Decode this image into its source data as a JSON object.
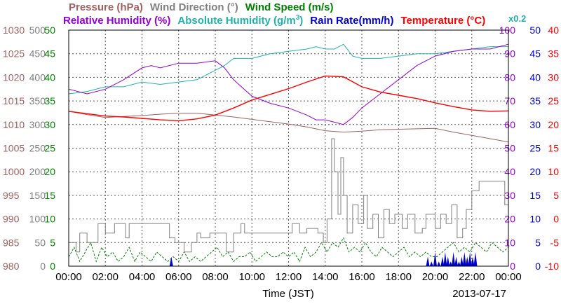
{
  "chart_data": {
    "type": "line",
    "date": "2013-07-17",
    "xlabel": "Time (JST)",
    "x_ticks": [
      "00:00",
      "02:00",
      "04:00",
      "06:00",
      "08:00",
      "10:00",
      "12:00",
      "14:00",
      "16:00",
      "18:00",
      "20:00",
      "22:00",
      "00:00"
    ],
    "x_range_hours": [
      0,
      24
    ],
    "grid": true,
    "axes": [
      {
        "label": "Pressure (hPa)",
        "color": "#a06060",
        "range": [
          980,
          1030
        ],
        "ticks": [
          "980",
          "985",
          "990",
          "995",
          "1000",
          "1005",
          "1010",
          "1015",
          "1020",
          "1025",
          "1030"
        ]
      },
      {
        "label": "Wind Direction (°)",
        "color": "#808080",
        "range": [
          0,
          500
        ],
        "ticks": [
          "0",
          "50",
          "100",
          "150",
          "200",
          "250",
          "300",
          "350",
          "400",
          "450",
          "500"
        ]
      },
      {
        "label": "Wind Speed (m/s)",
        "color": "#008000",
        "range": [
          0,
          50
        ],
        "ticks": [
          "0",
          "5",
          "10",
          "15",
          "20",
          "25",
          "30",
          "35",
          "40",
          "45",
          "50"
        ]
      },
      {
        "label": "Relative Humidity (%)",
        "color": "#9400d3",
        "range": [
          0,
          100
        ],
        "ticks": [
          "0",
          "10",
          "20",
          "30",
          "40",
          "50",
          "60",
          "70",
          "80",
          "90",
          "100"
        ]
      },
      {
        "label": "Rain Rate(mm/h)",
        "color": "#0000cd",
        "range": [
          0,
          50
        ],
        "ticks": [
          "0",
          "5",
          "10",
          "15",
          "20",
          "25",
          "30",
          "35",
          "40",
          "45",
          "50"
        ]
      },
      {
        "label": "Temperature (°C)",
        "color": "#ff0000",
        "range": [
          -10,
          40
        ],
        "ticks": [
          "-10",
          "-5",
          "0",
          "5",
          "10",
          "15",
          "20",
          "25",
          "30",
          "35",
          "40"
        ]
      }
    ],
    "legend": {
      "row1": [
        {
          "label": "Pressure (hPa)",
          "color": "#a06060"
        },
        {
          "label": "Wind Direction (°)",
          "color": "#808080"
        },
        {
          "label": "Wind Speed (m/s)",
          "color": "#008000"
        }
      ],
      "row2": [
        {
          "label": "Relative Humidity (%)",
          "color": "#9400d3"
        },
        {
          "label": "Absolute Humidity (g/m",
          "sup": "3",
          "tail": ")",
          "color": "#20b2aa"
        },
        {
          "label": "Rain Rate(mm/h)",
          "color": "#0000cd"
        },
        {
          "label": "Temperature (°C)",
          "color": "#ff0000"
        }
      ],
      "scale_note": {
        "label": "x0.2",
        "color": "#20b2aa"
      }
    },
    "series": [
      {
        "name": "Pressure (hPa)",
        "axis": 0,
        "color": "#a06060",
        "x": [
          0,
          1,
          2,
          3,
          4,
          5,
          6,
          7,
          8,
          9,
          10,
          11,
          12,
          13,
          14,
          15,
          16,
          17,
          18,
          19,
          20,
          21,
          22,
          23,
          24
        ],
        "y": [
          1012.8,
          1012.1,
          1011.5,
          1011.7,
          1011.9,
          1012.2,
          1012.4,
          1012.4,
          1012.0,
          1011.6,
          1011.1,
          1010.6,
          1010.1,
          1009.5,
          1008.7,
          1008.4,
          1008.6,
          1008.9,
          1009.0,
          1009.1,
          1009.2,
          1008.4,
          1007.7,
          1007.0,
          1006.3
        ]
      },
      {
        "name": "Temperature (°C)",
        "axis": 5,
        "color": "#ff0000",
        "x": [
          0,
          1,
          2,
          3,
          4,
          5,
          6,
          7,
          8,
          9,
          10,
          11,
          12,
          13,
          14,
          15,
          16,
          17,
          18,
          19,
          20,
          21,
          22,
          23,
          24
        ],
        "y": [
          22.8,
          22.3,
          21.8,
          21.6,
          21.3,
          21.0,
          20.8,
          21.2,
          22.0,
          23.5,
          25.2,
          26.4,
          27.6,
          29.0,
          30.3,
          30.1,
          28.0,
          26.9,
          26.2,
          25.5,
          24.6,
          23.8,
          23.1,
          22.8,
          22.9
        ]
      },
      {
        "name": "Relative Humidity (%)",
        "axis": 3,
        "color": "#9400d3",
        "x": [
          0,
          1,
          2,
          3,
          4,
          4.5,
          5,
          6,
          7,
          8,
          8.5,
          9,
          10,
          11,
          12,
          13,
          13.5,
          14,
          14.5,
          15,
          15.5,
          16,
          17,
          18,
          19,
          20,
          21,
          22,
          23,
          24
        ],
        "y": [
          75,
          73,
          75,
          79,
          84,
          85,
          84,
          86,
          86,
          87,
          84,
          79,
          72,
          69,
          67,
          64,
          62,
          62,
          61,
          60,
          63,
          67,
          73,
          79,
          85,
          89,
          91,
          92,
          92,
          94
        ]
      },
      {
        "name": "Absolute Humidity",
        "axis": 3,
        "color": "#20b2aa",
        "x": [
          0,
          1,
          2,
          3,
          4,
          5,
          6,
          7,
          8,
          8.5,
          9,
          10,
          11,
          12,
          13,
          13.5,
          14,
          14.5,
          15,
          15.5,
          16,
          17,
          18,
          19,
          20,
          21,
          22,
          23,
          24
        ],
        "y": [
          73,
          74,
          76,
          76,
          78,
          77,
          78,
          79,
          83,
          85,
          88,
          88,
          90,
          91,
          92,
          93,
          92,
          92,
          94,
          89,
          88,
          88,
          89,
          90,
          90,
          91,
          92,
          93,
          93
        ]
      },
      {
        "name": "Wind Direction (°)",
        "axis": 1,
        "color": "#808080",
        "step": true,
        "x": [
          0,
          0.4,
          0.6,
          1.0,
          1.6,
          2.0,
          2.5,
          3.1,
          3.3,
          4.0,
          4.9,
          5.5,
          5.8,
          6.3,
          6.7,
          7.0,
          7.2,
          7.7,
          8.6,
          9.0,
          9.4,
          9.6,
          10.0,
          10.6,
          11.0,
          11.8,
          12.2,
          12.6,
          13.0,
          13.6,
          13.9,
          14.1,
          14.35,
          14.5,
          14.7,
          14.85,
          15.0,
          15.2,
          15.5,
          15.8,
          16.1,
          16.3,
          16.6,
          16.9,
          17.2,
          17.5,
          17.8,
          18.2,
          18.5,
          18.9,
          19.3,
          19.5,
          20.0,
          20.3,
          20.6,
          20.9,
          21.2,
          21.5,
          21.7,
          22.0,
          22.4,
          23.0,
          23.5,
          23.8,
          24.0
        ],
        "y": [
          50,
          30,
          70,
          50,
          90,
          70,
          90,
          60,
          90,
          90,
          90,
          60,
          50,
          30,
          50,
          70,
          60,
          70,
          30,
          70,
          90,
          70,
          70,
          70,
          70,
          70,
          90,
          70,
          80,
          70,
          50,
          100,
          270,
          200,
          110,
          230,
          150,
          70,
          130,
          90,
          150,
          80,
          110,
          60,
          120,
          90,
          110,
          80,
          110,
          70,
          80,
          110,
          80,
          110,
          90,
          130,
          60,
          80,
          120,
          160,
          180,
          180,
          180,
          130,
          150
        ]
      },
      {
        "name": "Wind Speed (m/s)",
        "axis": 2,
        "color": "#008000",
        "x": [
          0,
          0.3,
          0.6,
          0.9,
          1.2,
          1.5,
          1.8,
          2.1,
          2.4,
          2.7,
          3.0,
          3.3,
          3.6,
          3.9,
          4.2,
          4.5,
          4.8,
          5.1,
          5.4,
          5.7,
          6.0,
          6.3,
          6.6,
          6.9,
          7.2,
          7.5,
          7.8,
          8.1,
          8.4,
          8.7,
          9.0,
          9.3,
          9.6,
          9.9,
          10.2,
          10.5,
          10.8,
          11.1,
          11.4,
          11.7,
          12.0,
          12.3,
          12.6,
          12.9,
          13.2,
          13.5,
          13.8,
          14.1,
          14.4,
          14.7,
          15.0,
          15.3,
          15.6,
          15.9,
          16.2,
          16.5,
          16.8,
          17.1,
          17.4,
          17.7,
          18.0,
          18.3,
          18.6,
          18.9,
          19.2,
          19.5,
          19.8,
          20.1,
          20.4,
          20.7,
          21.0,
          21.3,
          21.6,
          21.9,
          22.2,
          22.5,
          22.8,
          23.1,
          23.4,
          23.7,
          24.0
        ],
        "y": [
          2,
          4,
          1,
          3,
          5,
          1,
          4,
          2,
          3,
          1,
          2,
          4,
          1,
          3,
          2,
          1,
          3,
          2,
          1,
          2,
          1,
          3,
          1,
          2,
          1,
          2,
          3,
          4,
          2,
          3,
          1,
          2,
          2,
          3,
          1,
          2,
          3,
          2,
          2,
          3,
          2,
          3,
          1,
          4,
          2,
          3,
          5,
          3,
          5,
          4,
          6,
          3,
          4,
          3,
          5,
          3,
          2,
          4,
          3,
          2,
          3,
          4,
          2,
          3,
          2,
          3,
          2,
          2,
          3,
          4,
          5,
          3,
          4,
          3,
          5,
          4,
          3,
          5,
          4,
          3,
          4
        ]
      },
      {
        "name": "Rain Rate(mm/h)",
        "axis": 4,
        "color": "#0000cd",
        "spikes": true,
        "x": [
          5.6,
          19.6,
          19.8,
          20.0,
          20.2,
          20.4,
          20.55,
          20.7,
          20.85,
          21.0,
          21.15,
          21.3,
          21.45,
          21.6,
          21.75,
          21.9,
          22.05,
          22.2
        ],
        "y": [
          2,
          2,
          1,
          3,
          1,
          2,
          3,
          2,
          1,
          3,
          2,
          1,
          2,
          3,
          2,
          3,
          2,
          3
        ]
      }
    ]
  }
}
